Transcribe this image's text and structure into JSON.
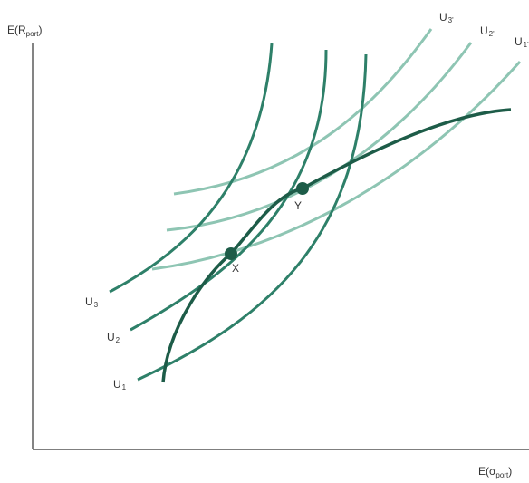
{
  "axes": {
    "y_title": {
      "main": "E(R",
      "sub": "port",
      "end": ")"
    },
    "x_title": {
      "main": "E(σ",
      "sub": "port",
      "end": ")"
    }
  },
  "curves": {
    "u1": {
      "main": "U",
      "sub": "1"
    },
    "u2": {
      "main": "U",
      "sub": "2"
    },
    "u3": {
      "main": "U",
      "sub": "3"
    },
    "u1_prime": {
      "main": "U",
      "sub": "1'"
    },
    "u2_prime": {
      "main": "U",
      "sub": "2'"
    },
    "u3_prime": {
      "main": "U",
      "sub": "3'"
    }
  },
  "points": {
    "x": "X",
    "y": "Y"
  },
  "colors": {
    "frontier": "#1d5c48",
    "steep_curves": "#2e8069",
    "flat_curves": "#8ec5b3",
    "axis": "#333333",
    "text": "#333333"
  }
}
